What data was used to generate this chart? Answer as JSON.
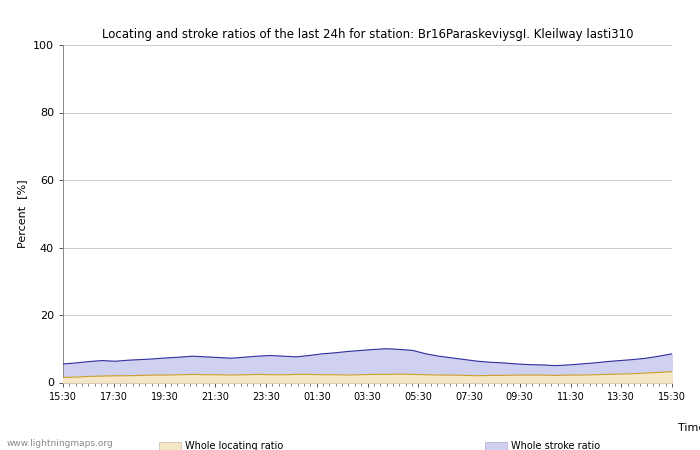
{
  "title": "Locating and stroke ratios of the last 24h for station: Br16ParaskeviysgI. Kleilway lasti310",
  "ylabel": "Percent  [%]",
  "xlabel": "Time",
  "ylim": [
    0,
    100
  ],
  "yticks": [
    0,
    20,
    40,
    60,
    80,
    100
  ],
  "xtick_labels": [
    "15:30",
    "17:30",
    "19:30",
    "21:30",
    "23:30",
    "01:30",
    "03:30",
    "05:30",
    "07:30",
    "09:30",
    "11:30",
    "13:30",
    "15:30"
  ],
  "watermark": "www.lightningmaps.org",
  "fill_locating_color": "#f5e6c8",
  "fill_stroke_color": "#d0d0f0",
  "line_locating_color": "#c8a030",
  "line_stroke_color": "#3030a0",
  "background_color": "#ffffff",
  "grid_color": "#cccccc",
  "locating_data": [
    1.5,
    1.6,
    1.8,
    1.9,
    2.0,
    2.0,
    2.1,
    2.2,
    2.2,
    2.3,
    2.4,
    2.3,
    2.3,
    2.2,
    2.3,
    2.4,
    2.3,
    2.3,
    2.4,
    2.4,
    2.3,
    2.3,
    2.2,
    2.3,
    2.4,
    2.4,
    2.5,
    2.4,
    2.3,
    2.2,
    2.2,
    2.1,
    2.0,
    2.1,
    2.1,
    2.2,
    2.2,
    2.2,
    2.1,
    2.2,
    2.2,
    2.3,
    2.4,
    2.5,
    2.6,
    2.8,
    3.0,
    3.2
  ],
  "stroke_data": [
    5.5,
    5.8,
    6.2,
    6.5,
    6.3,
    6.6,
    6.8,
    7.0,
    7.3,
    7.5,
    7.8,
    7.6,
    7.4,
    7.2,
    7.5,
    7.8,
    8.0,
    7.8,
    7.6,
    8.0,
    8.5,
    8.8,
    9.2,
    9.5,
    9.8,
    10.0,
    9.8,
    9.5,
    8.5,
    7.8,
    7.3,
    6.8,
    6.3,
    6.0,
    5.8,
    5.5,
    5.3,
    5.2,
    5.0,
    5.2,
    5.5,
    5.8,
    6.2,
    6.5,
    6.8,
    7.2,
    7.8,
    8.5
  ]
}
